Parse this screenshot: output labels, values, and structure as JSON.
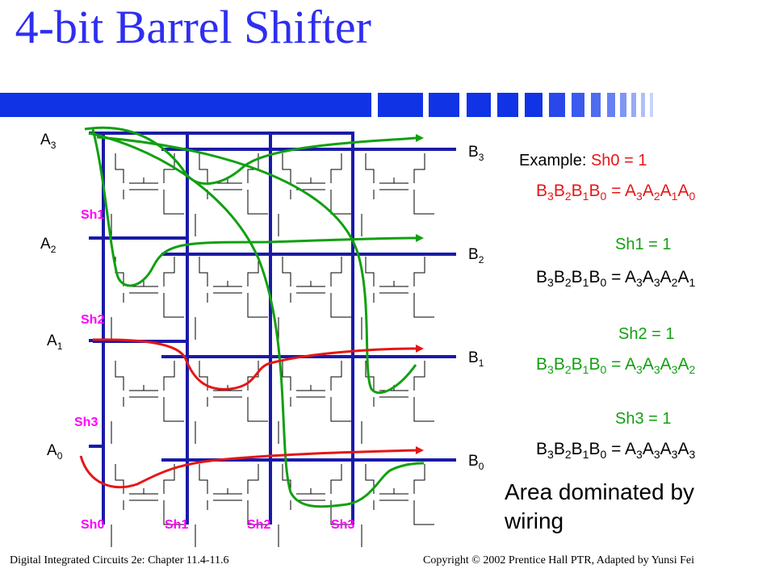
{
  "title": "4-bit Barrel Shifter",
  "colors": {
    "title": "#2e2ef0",
    "bus_wire": "#1a1aa8",
    "transistor_wire": "#000000",
    "green_path": "#11a011",
    "red_path": "#e51616",
    "shift_label": "#ff00ff",
    "deco_bar": "#1033e6"
  },
  "inputs": [
    "A3",
    "A2",
    "A1",
    "A0"
  ],
  "outputs": [
    "B3",
    "B2",
    "B1",
    "B0"
  ],
  "shift_labels_side": [
    "Sh1",
    "Sh2",
    "Sh3"
  ],
  "shift_labels_bottom": [
    "Sh0",
    "Sh1",
    "Sh2",
    "Sh3"
  ],
  "examples": [
    {
      "caption_prefix": "Example: ",
      "caption": "Sh0 = 1",
      "lhs": "B3B2B1B0",
      "rhs": "A3A2A1A0",
      "color": "#e51616"
    },
    {
      "caption_prefix": "",
      "caption": "Sh1 = 1",
      "lhs": "B3B2B1B0",
      "rhs": "A3A3A2A1",
      "color": "#000000"
    },
    {
      "caption_prefix": "",
      "caption": "Sh2 = 1",
      "lhs": "B3B2B1B0",
      "rhs": "A3A3A3A2",
      "color": "#11a011"
    },
    {
      "caption_prefix": "",
      "caption": "Sh3 = 1",
      "lhs": "B3B2B1B0",
      "rhs": "A3A3A3A3",
      "color": "#000000"
    }
  ],
  "area_note": "Area dominated by wiring",
  "footer_left": "Digital Integrated Circuits 2e: Chapter 11.4-11.6",
  "footer_right": "Copyright © 2002 Prentice Hall PTR, Adapted by Yunsi Fei"
}
